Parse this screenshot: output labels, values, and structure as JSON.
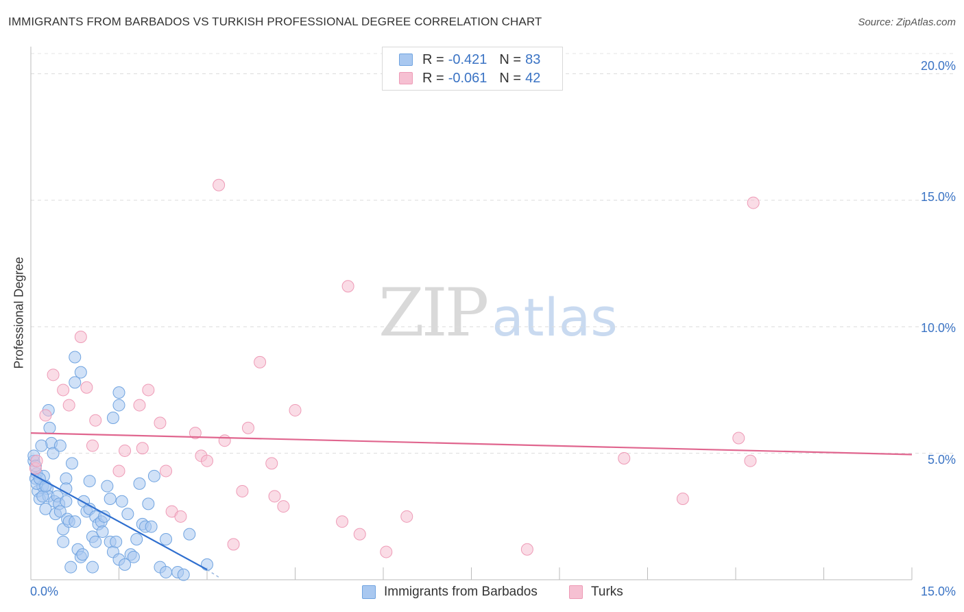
{
  "title": "IMMIGRANTS FROM BARBADOS VS TURKISH PROFESSIONAL DEGREE CORRELATION CHART",
  "source": "Source: ZipAtlas.com",
  "watermark": {
    "zip": "ZIP",
    "atlas": "atlas"
  },
  "legend": [
    {
      "r_label": "R =",
      "r_value": "-0.421",
      "n_label": "N =",
      "n_value": "83"
    },
    {
      "r_label": "R =",
      "r_value": "-0.061",
      "n_label": "N =",
      "n_value": "42"
    }
  ],
  "chart_data": {
    "type": "scatter",
    "title": "IMMIGRANTS FROM BARBADOS VS TURKISH PROFESSIONAL DEGREE CORRELATION CHART",
    "xlabel": "",
    "ylabel": "Professional Degree",
    "xlim": [
      0,
      15
    ],
    "ylim": [
      0,
      20.8
    ],
    "x_tick_labels": [
      "0.0%",
      "15.0%"
    ],
    "y_ticks": [
      5,
      10,
      15,
      20
    ],
    "y_tick_labels": [
      "5.0%",
      "10.0%",
      "15.0%",
      "20.0%"
    ],
    "grid": true,
    "legend_position": "bottom-center",
    "series": [
      {
        "name": "Immigrants from Barbados",
        "color": "#6fa3e0",
        "fill": "#a9c8f0",
        "line_color": "#2f6fcf",
        "R": -0.421,
        "N": 83,
        "trend": {
          "x": [
            0.0,
            3.0
          ],
          "y": [
            4.2,
            0.4
          ],
          "dash_to": [
            3.2,
            0.1
          ]
        },
        "points": [
          [
            0.05,
            4.7
          ],
          [
            0.1,
            4.2
          ],
          [
            0.08,
            4.0
          ],
          [
            0.12,
            3.5
          ],
          [
            0.15,
            3.2
          ],
          [
            0.2,
            3.7
          ],
          [
            0.22,
            4.1
          ],
          [
            0.25,
            2.8
          ],
          [
            0.28,
            3.6
          ],
          [
            0.3,
            3.3
          ],
          [
            0.3,
            6.7
          ],
          [
            0.32,
            6.0
          ],
          [
            0.35,
            5.4
          ],
          [
            0.38,
            5.0
          ],
          [
            0.4,
            3.1
          ],
          [
            0.42,
            2.6
          ],
          [
            0.45,
            3.3
          ],
          [
            0.48,
            3.0
          ],
          [
            0.5,
            5.3
          ],
          [
            0.5,
            2.7
          ],
          [
            0.55,
            2.0
          ],
          [
            0.55,
            1.5
          ],
          [
            0.6,
            4.0
          ],
          [
            0.6,
            3.1
          ],
          [
            0.62,
            2.4
          ],
          [
            0.65,
            2.3
          ],
          [
            0.68,
            0.5
          ],
          [
            0.7,
            4.6
          ],
          [
            0.75,
            2.3
          ],
          [
            0.8,
            1.2
          ],
          [
            0.85,
            0.9
          ],
          [
            0.88,
            1.0
          ],
          [
            0.9,
            3.1
          ],
          [
            0.95,
            2.7
          ],
          [
            1.0,
            3.9
          ],
          [
            1.0,
            2.8
          ],
          [
            1.05,
            0.5
          ],
          [
            1.05,
            1.7
          ],
          [
            1.1,
            2.5
          ],
          [
            1.1,
            1.5
          ],
          [
            1.15,
            2.2
          ],
          [
            1.2,
            2.3
          ],
          [
            1.22,
            1.9
          ],
          [
            1.25,
            2.5
          ],
          [
            1.3,
            3.7
          ],
          [
            1.35,
            3.2
          ],
          [
            1.35,
            1.5
          ],
          [
            1.4,
            1.1
          ],
          [
            1.45,
            1.5
          ],
          [
            1.5,
            0.8
          ],
          [
            1.55,
            3.1
          ],
          [
            1.6,
            0.6
          ],
          [
            1.65,
            2.6
          ],
          [
            1.7,
            1.0
          ],
          [
            1.75,
            0.9
          ],
          [
            1.8,
            1.6
          ],
          [
            1.85,
            3.8
          ],
          [
            1.9,
            2.2
          ],
          [
            1.95,
            2.1
          ],
          [
            2.0,
            3.0
          ],
          [
            2.05,
            2.1
          ],
          [
            2.1,
            4.1
          ],
          [
            2.3,
            1.6
          ],
          [
            2.2,
            0.5
          ],
          [
            2.3,
            0.3
          ],
          [
            2.5,
            0.3
          ],
          [
            2.6,
            0.2
          ],
          [
            2.7,
            1.8
          ],
          [
            3.0,
            0.6
          ],
          [
            1.4,
            6.4
          ],
          [
            0.75,
            8.8
          ],
          [
            0.75,
            7.8
          ],
          [
            0.85,
            8.2
          ],
          [
            1.5,
            7.4
          ],
          [
            1.5,
            6.9
          ],
          [
            0.05,
            4.9
          ],
          [
            0.08,
            4.5
          ],
          [
            0.1,
            3.8
          ],
          [
            0.15,
            4.0
          ],
          [
            0.18,
            5.3
          ],
          [
            0.2,
            3.3
          ],
          [
            0.25,
            3.7
          ],
          [
            0.6,
            3.6
          ]
        ]
      },
      {
        "name": "Turks",
        "color": "#ee9ab6",
        "fill": "#f6c0d2",
        "line_color": "#e0658e",
        "R": -0.061,
        "N": 42,
        "trend": {
          "x": [
            0.0,
            15.0
          ],
          "y": [
            5.8,
            4.95
          ]
        },
        "points": [
          [
            0.08,
            4.4
          ],
          [
            0.1,
            4.7
          ],
          [
            0.25,
            6.5
          ],
          [
            0.38,
            8.1
          ],
          [
            0.55,
            7.5
          ],
          [
            0.65,
            6.9
          ],
          [
            0.85,
            9.6
          ],
          [
            0.95,
            7.6
          ],
          [
            1.05,
            5.3
          ],
          [
            1.1,
            6.3
          ],
          [
            1.5,
            4.3
          ],
          [
            1.6,
            5.1
          ],
          [
            1.85,
            6.9
          ],
          [
            1.9,
            5.2
          ],
          [
            2.0,
            7.5
          ],
          [
            2.2,
            6.2
          ],
          [
            2.3,
            4.3
          ],
          [
            2.4,
            2.7
          ],
          [
            2.55,
            2.5
          ],
          [
            2.8,
            5.8
          ],
          [
            2.9,
            4.9
          ],
          [
            3.0,
            4.7
          ],
          [
            3.2,
            15.6
          ],
          [
            3.3,
            5.5
          ],
          [
            3.45,
            1.4
          ],
          [
            3.6,
            3.5
          ],
          [
            3.7,
            6.0
          ],
          [
            3.9,
            8.6
          ],
          [
            4.1,
            4.6
          ],
          [
            4.15,
            3.3
          ],
          [
            4.3,
            2.9
          ],
          [
            4.5,
            6.7
          ],
          [
            5.3,
            2.3
          ],
          [
            5.4,
            11.6
          ],
          [
            5.6,
            1.8
          ],
          [
            6.05,
            1.1
          ],
          [
            6.4,
            2.5
          ],
          [
            8.45,
            1.2
          ],
          [
            10.1,
            4.8
          ],
          [
            11.1,
            3.2
          ],
          [
            12.05,
            5.6
          ],
          [
            12.25,
            4.7
          ]
        ]
      }
    ]
  },
  "extra_points": [
    [
      12.3,
      14.9
    ]
  ]
}
